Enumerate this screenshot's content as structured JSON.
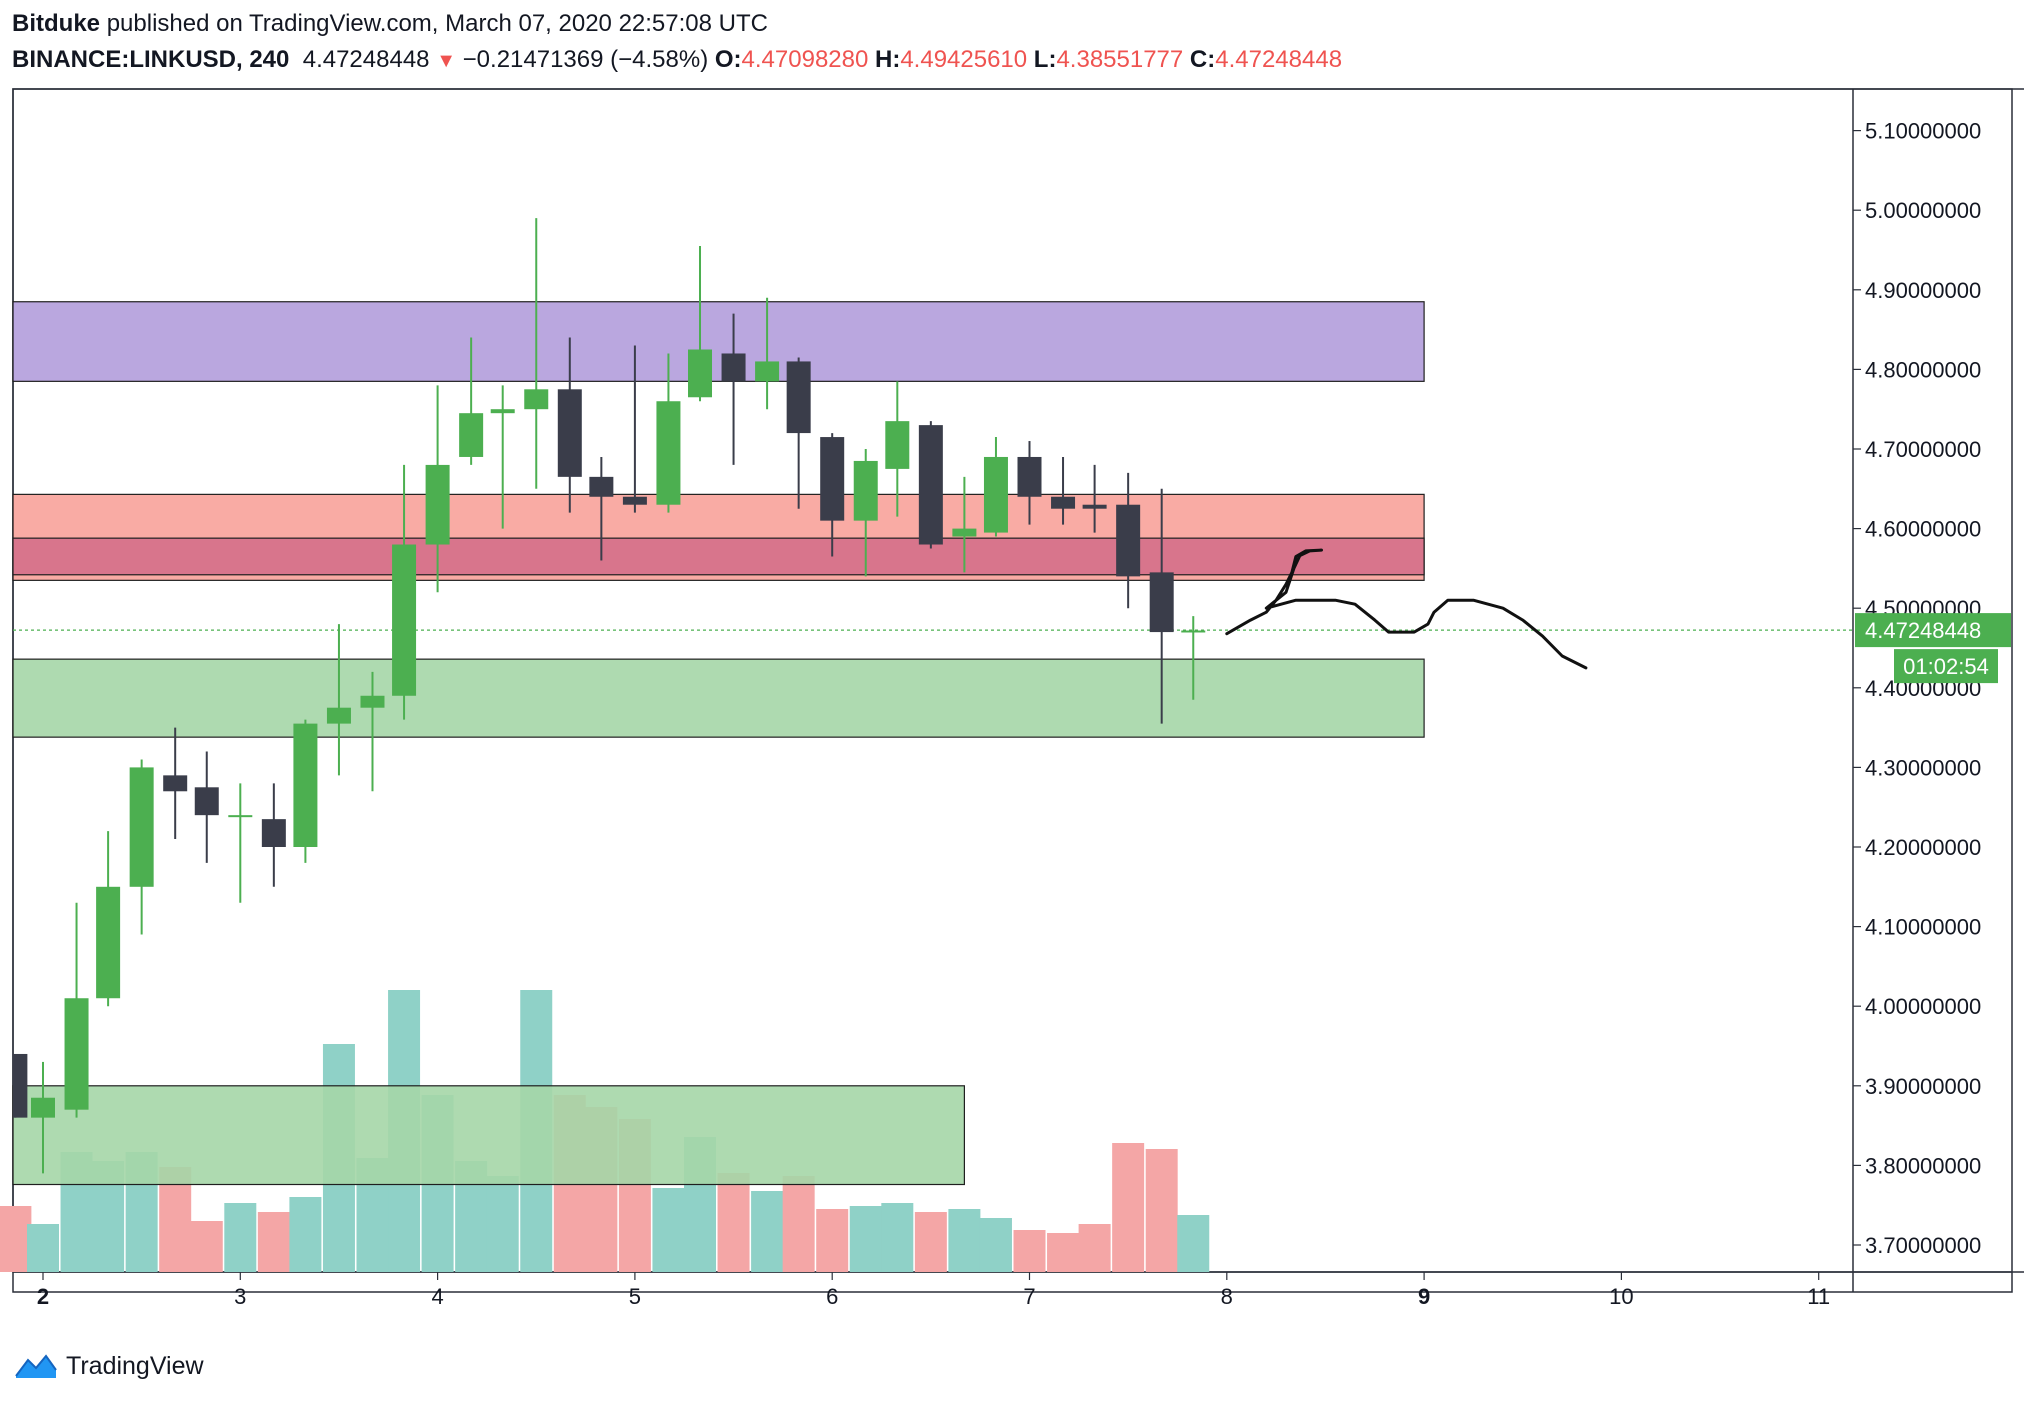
{
  "header": {
    "author": "Bitduke",
    "published_text": "published on TradingView.com, March 07, 2020 22:57:08 UTC",
    "symbol": "BINANCE:LINKUSD, 240",
    "last": "4.47248448",
    "change_arrow": "▼",
    "change": "−0.21471369 (−4.58%)",
    "o_label": "O:",
    "o_val": "4.47098280",
    "h_label": "H:",
    "h_val": "4.49425610",
    "l_label": "L:",
    "l_val": "4.38551777",
    "c_label": "C:",
    "c_val": "4.47248448"
  },
  "footer": {
    "brand": "TradingView",
    "logo_icon": "tradingview-logo-icon"
  },
  "colors": {
    "up": "#4caf50",
    "down": "#3a3d4a",
    "vol_up": "#8fd1c7",
    "vol_down": "#f4a6a6",
    "price_tag": "#4caf50",
    "grid_border": "#2a2e39"
  },
  "chart_data": {
    "type": "candlestick",
    "timeframe": "240",
    "x_ticks": [
      "2",
      "3",
      "4",
      "5",
      "6",
      "7",
      "8",
      "9",
      "10",
      "11"
    ],
    "x_ticks_bold": [
      "2",
      "9"
    ],
    "y_ticks": [
      "5.10000000",
      "5.00000000",
      "4.90000000",
      "4.80000000",
      "4.70000000",
      "4.60000000",
      "4.50000000",
      "4.40000000",
      "4.30000000",
      "4.20000000",
      "4.10000000",
      "4.00000000",
      "3.90000000",
      "3.80000000",
      "3.70000000"
    ],
    "ylim": [
      3.665,
      5.145
    ],
    "last_price": 4.47248448,
    "last_price_label": "4.47248448",
    "countdown": "01:02:54",
    "candles": [
      {
        "t": 1.86,
        "o": 3.94,
        "h": 3.94,
        "l": 3.86,
        "c": 3.86
      },
      {
        "t": 2.0,
        "o": 3.86,
        "h": 3.93,
        "l": 3.79,
        "c": 3.885
      },
      {
        "t": 2.17,
        "o": 3.87,
        "h": 4.13,
        "l": 3.86,
        "c": 4.01
      },
      {
        "t": 2.33,
        "o": 4.01,
        "h": 4.22,
        "l": 4.0,
        "c": 4.15
      },
      {
        "t": 2.5,
        "o": 4.15,
        "h": 4.31,
        "l": 4.09,
        "c": 4.3
      },
      {
        "t": 2.67,
        "o": 4.29,
        "h": 4.35,
        "l": 4.21,
        "c": 4.27
      },
      {
        "t": 2.83,
        "o": 4.275,
        "h": 4.32,
        "l": 4.18,
        "c": 4.24
      },
      {
        "t": 3.0,
        "o": 4.24,
        "h": 4.28,
        "l": 4.13,
        "c": 4.24
      },
      {
        "t": 3.17,
        "o": 4.235,
        "h": 4.28,
        "l": 4.15,
        "c": 4.2
      },
      {
        "t": 3.33,
        "o": 4.2,
        "h": 4.36,
        "l": 4.18,
        "c": 4.355
      },
      {
        "t": 3.5,
        "o": 4.355,
        "h": 4.48,
        "l": 4.29,
        "c": 4.375
      },
      {
        "t": 3.67,
        "o": 4.375,
        "h": 4.42,
        "l": 4.27,
        "c": 4.39
      },
      {
        "t": 3.83,
        "o": 4.39,
        "h": 4.68,
        "l": 4.36,
        "c": 4.58
      },
      {
        "t": 4.0,
        "o": 4.58,
        "h": 4.78,
        "l": 4.52,
        "c": 4.68
      },
      {
        "t": 4.17,
        "o": 4.69,
        "h": 4.84,
        "l": 4.68,
        "c": 4.745
      },
      {
        "t": 4.33,
        "o": 4.745,
        "h": 4.78,
        "l": 4.6,
        "c": 4.75
      },
      {
        "t": 4.5,
        "o": 4.75,
        "h": 4.99,
        "l": 4.65,
        "c": 4.775
      },
      {
        "t": 4.67,
        "o": 4.775,
        "h": 4.84,
        "l": 4.62,
        "c": 4.665
      },
      {
        "t": 4.83,
        "o": 4.665,
        "h": 4.69,
        "l": 4.56,
        "c": 4.64
      },
      {
        "t": 5.0,
        "o": 4.64,
        "h": 4.83,
        "l": 4.62,
        "c": 4.63
      },
      {
        "t": 5.17,
        "o": 4.63,
        "h": 4.82,
        "l": 4.62,
        "c": 4.76
      },
      {
        "t": 5.33,
        "o": 4.765,
        "h": 4.955,
        "l": 4.76,
        "c": 4.825
      },
      {
        "t": 5.5,
        "o": 4.82,
        "h": 4.87,
        "l": 4.68,
        "c": 4.785
      },
      {
        "t": 5.67,
        "o": 4.785,
        "h": 4.89,
        "l": 4.75,
        "c": 4.81
      },
      {
        "t": 5.83,
        "o": 4.81,
        "h": 4.815,
        "l": 4.625,
        "c": 4.72
      },
      {
        "t": 6.0,
        "o": 4.715,
        "h": 4.72,
        "l": 4.565,
        "c": 4.61
      },
      {
        "t": 6.17,
        "o": 4.61,
        "h": 4.7,
        "l": 4.54,
        "c": 4.685
      },
      {
        "t": 6.33,
        "o": 4.675,
        "h": 4.785,
        "l": 4.615,
        "c": 4.735
      },
      {
        "t": 6.5,
        "o": 4.73,
        "h": 4.735,
        "l": 4.575,
        "c": 4.58
      },
      {
        "t": 6.67,
        "o": 4.59,
        "h": 4.665,
        "l": 4.545,
        "c": 4.6
      },
      {
        "t": 6.83,
        "o": 4.595,
        "h": 4.715,
        "l": 4.59,
        "c": 4.69
      },
      {
        "t": 7.0,
        "o": 4.69,
        "h": 4.71,
        "l": 4.605,
        "c": 4.64
      },
      {
        "t": 7.17,
        "o": 4.64,
        "h": 4.69,
        "l": 4.605,
        "c": 4.625
      },
      {
        "t": 7.33,
        "o": 4.63,
        "h": 4.68,
        "l": 4.595,
        "c": 4.625
      },
      {
        "t": 7.5,
        "o": 4.63,
        "h": 4.67,
        "l": 4.5,
        "c": 4.54
      },
      {
        "t": 7.67,
        "o": 4.545,
        "h": 4.65,
        "l": 4.355,
        "c": 4.47
      },
      {
        "t": 7.83,
        "o": 4.47,
        "h": 4.49,
        "l": 4.385,
        "c": 4.472
      }
    ],
    "volume": {
      "ylim": [
        0,
        100
      ],
      "bars": [
        {
          "t": 1.86,
          "v": 22,
          "up": false
        },
        {
          "t": 2.0,
          "v": 16,
          "up": true
        },
        {
          "t": 2.17,
          "v": 40,
          "up": true
        },
        {
          "t": 2.33,
          "v": 37,
          "up": true
        },
        {
          "t": 2.5,
          "v": 40,
          "up": true
        },
        {
          "t": 2.67,
          "v": 35,
          "up": false
        },
        {
          "t": 2.83,
          "v": 17,
          "up": false
        },
        {
          "t": 3.0,
          "v": 23,
          "up": true
        },
        {
          "t": 3.17,
          "v": 20,
          "up": false
        },
        {
          "t": 3.33,
          "v": 25,
          "up": true
        },
        {
          "t": 3.5,
          "v": 76,
          "up": true
        },
        {
          "t": 3.67,
          "v": 38,
          "up": true
        },
        {
          "t": 3.83,
          "v": 94,
          "up": true
        },
        {
          "t": 4.0,
          "v": 59,
          "up": true
        },
        {
          "t": 4.17,
          "v": 37,
          "up": true
        },
        {
          "t": 4.33,
          "v": 32,
          "up": true
        },
        {
          "t": 4.5,
          "v": 94,
          "up": true
        },
        {
          "t": 4.67,
          "v": 59,
          "up": false
        },
        {
          "t": 4.83,
          "v": 55,
          "up": false
        },
        {
          "t": 5.0,
          "v": 51,
          "up": false
        },
        {
          "t": 5.17,
          "v": 28,
          "up": true
        },
        {
          "t": 5.33,
          "v": 45,
          "up": true
        },
        {
          "t": 5.5,
          "v": 33,
          "up": false
        },
        {
          "t": 5.67,
          "v": 27,
          "up": true
        },
        {
          "t": 5.83,
          "v": 32,
          "up": false
        },
        {
          "t": 6.0,
          "v": 21,
          "up": false
        },
        {
          "t": 6.17,
          "v": 22,
          "up": true
        },
        {
          "t": 6.33,
          "v": 23,
          "up": true
        },
        {
          "t": 6.5,
          "v": 20,
          "up": false
        },
        {
          "t": 6.67,
          "v": 21,
          "up": true
        },
        {
          "t": 6.83,
          "v": 18,
          "up": true
        },
        {
          "t": 7.0,
          "v": 14,
          "up": false
        },
        {
          "t": 7.17,
          "v": 13,
          "up": false
        },
        {
          "t": 7.33,
          "v": 16,
          "up": false
        },
        {
          "t": 7.5,
          "v": 43,
          "up": false
        },
        {
          "t": 7.67,
          "v": 41,
          "up": false
        },
        {
          "t": 7.83,
          "v": 19,
          "up": true
        }
      ]
    },
    "zones": [
      {
        "name": "purple-resistance-zone",
        "x0": 1.84,
        "x1": 9.0,
        "y0": 4.785,
        "y1": 4.885,
        "color": "#b39ddb"
      },
      {
        "name": "red-zone",
        "x0": 1.84,
        "x1": 9.0,
        "y0": 4.535,
        "y1": 4.643,
        "color": "#f8a29a"
      },
      {
        "name": "dark-red-zone",
        "x0": 1.84,
        "x1": 9.0,
        "y0": 4.542,
        "y1": 4.588,
        "color": "#d46f8a"
      },
      {
        "name": "green-support-zone",
        "x0": 1.84,
        "x1": 9.0,
        "y0": 4.338,
        "y1": 4.436,
        "color": "#a5d6a7"
      },
      {
        "name": "green-lower-zone",
        "x0": 1.84,
        "x1": 6.67,
        "y0": 3.776,
        "y1": 3.9,
        "color": "#a5d6a7"
      }
    ],
    "drawing": {
      "name": "hand-drawn-projection",
      "points": [
        [
          8.0,
          4.468
        ],
        [
          8.12,
          4.485
        ],
        [
          8.2,
          4.495
        ],
        [
          8.25,
          4.51
        ],
        [
          8.3,
          4.53
        ],
        [
          8.33,
          4.545
        ],
        [
          8.35,
          4.565
        ],
        [
          8.4,
          4.572
        ],
        [
          8.48,
          4.573
        ],
        [
          8.42,
          4.572
        ],
        [
          8.37,
          4.566
        ],
        [
          8.34,
          4.55
        ],
        [
          8.3,
          4.52
        ],
        [
          8.2,
          4.5
        ],
        [
          8.35,
          4.51
        ],
        [
          8.55,
          4.51
        ],
        [
          8.65,
          4.505
        ],
        [
          8.75,
          4.485
        ],
        [
          8.82,
          4.47
        ],
        [
          8.95,
          4.47
        ],
        [
          9.02,
          4.48
        ],
        [
          9.05,
          4.495
        ],
        [
          9.12,
          4.51
        ],
        [
          9.25,
          4.51
        ],
        [
          9.4,
          4.5
        ],
        [
          9.5,
          4.485
        ],
        [
          9.6,
          4.465
        ],
        [
          9.7,
          4.44
        ],
        [
          9.82,
          4.425
        ]
      ]
    }
  }
}
